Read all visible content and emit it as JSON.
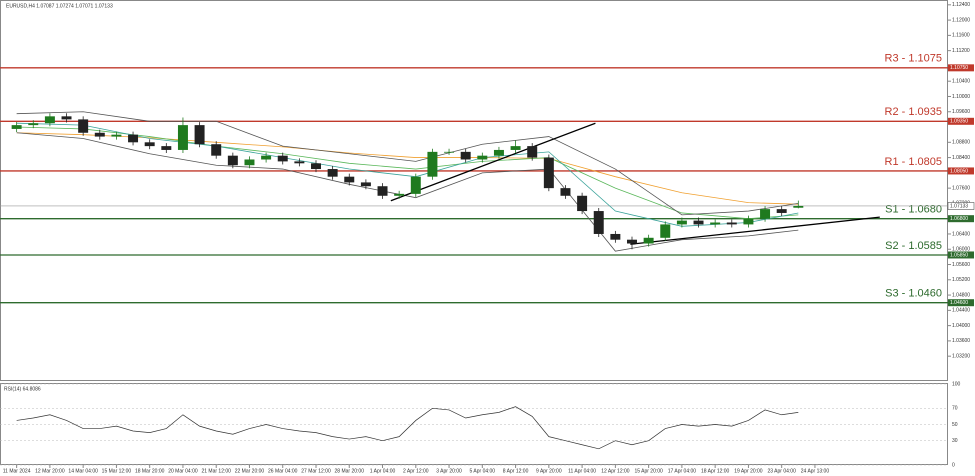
{
  "chart_data": [
    {
      "type": "candlestick",
      "title": "EURUSD,H4 1.07087 1.07274 1.07071 1.07133",
      "x": [
        0,
        1,
        2,
        3,
        4,
        5,
        6,
        7,
        8,
        9,
        10,
        11,
        12,
        13,
        14,
        15,
        16,
        17,
        18,
        19,
        20,
        21,
        22,
        23,
        24,
        25,
        26,
        27,
        28,
        29,
        30,
        31,
        32,
        33,
        34,
        35,
        36,
        37,
        38,
        39,
        40,
        41,
        42,
        43,
        44,
        45,
        46,
        47
      ],
      "open": [
        1.0915,
        1.0925,
        1.093,
        1.0948,
        1.094,
        1.0905,
        1.0895,
        1.09,
        1.088,
        1.087,
        1.086,
        1.0925,
        1.0875,
        1.0845,
        1.082,
        1.0835,
        1.0845,
        1.083,
        1.0825,
        1.081,
        1.079,
        1.0775,
        1.0765,
        1.074,
        1.0745,
        1.079,
        1.0855,
        1.0855,
        1.0835,
        1.0845,
        1.086,
        1.087,
        1.084,
        1.076,
        1.074,
        1.07,
        1.064,
        1.0625,
        1.0615,
        1.063,
        1.0665,
        1.0675,
        1.0665,
        1.067,
        1.0665,
        1.068,
        1.0705,
        1.07087
      ],
      "high": [
        1.0933,
        1.0938,
        1.0956,
        1.0956,
        1.0948,
        1.0913,
        1.0908,
        1.0908,
        1.0888,
        1.0878,
        1.0945,
        1.0933,
        1.0883,
        1.0853,
        1.0843,
        1.0853,
        1.0853,
        1.0838,
        1.0833,
        1.0818,
        1.0798,
        1.0783,
        1.0773,
        1.0753,
        1.0798,
        1.0863,
        1.0863,
        1.0863,
        1.0853,
        1.0868,
        1.0885,
        1.0878,
        1.0848,
        1.0768,
        1.0748,
        1.0708,
        1.0648,
        1.0633,
        1.0638,
        1.0673,
        1.0683,
        1.0683,
        1.0678,
        1.0678,
        1.0688,
        1.0713,
        1.0713,
        1.07274
      ],
      "low": [
        1.0907,
        1.0917,
        1.0922,
        1.0932,
        1.0897,
        1.0887,
        1.0887,
        1.0872,
        1.0862,
        1.0852,
        1.0852,
        1.0867,
        1.0837,
        1.0812,
        1.0812,
        1.0827,
        1.0822,
        1.0817,
        1.0802,
        1.0782,
        1.0767,
        1.0757,
        1.0732,
        1.0732,
        1.0737,
        1.0782,
        1.0847,
        1.0827,
        1.0827,
        1.0837,
        1.0852,
        1.0832,
        1.0752,
        1.0732,
        1.0692,
        1.0632,
        1.0617,
        1.06,
        1.0607,
        1.0622,
        1.0657,
        1.0657,
        1.0657,
        1.0657,
        1.0657,
        1.0672,
        1.0687,
        1.07071
      ],
      "close": [
        1.0925,
        1.093,
        1.0948,
        1.094,
        1.0905,
        1.0895,
        1.09,
        1.088,
        1.087,
        1.086,
        1.0925,
        1.0875,
        1.0845,
        1.082,
        1.0835,
        1.0845,
        1.083,
        1.0825,
        1.081,
        1.079,
        1.0775,
        1.0765,
        1.074,
        1.0745,
        1.079,
        1.0855,
        1.0855,
        1.0835,
        1.0845,
        1.086,
        1.087,
        1.084,
        1.076,
        1.074,
        1.07,
        1.064,
        1.0625,
        1.0615,
        1.063,
        1.0665,
        1.0675,
        1.0665,
        1.067,
        1.0665,
        1.068,
        1.0705,
        1.0695,
        1.07133
      ],
      "up_color": "#1f7a1f",
      "down_color": "#222222",
      "lines": [
        {
          "color": "#f0a030",
          "x": [
            0,
            4,
            8,
            12,
            16,
            20,
            24,
            28,
            32,
            36,
            40,
            44,
            47
          ],
          "values": [
            1.0905,
            1.09,
            1.0892,
            1.088,
            1.0868,
            1.0852,
            1.084,
            1.084,
            1.0838,
            1.079,
            1.0748,
            1.0722,
            1.0718
          ]
        },
        {
          "color": "#5cb85c",
          "x": [
            0,
            4,
            8,
            12,
            16,
            20,
            24,
            28,
            32,
            36,
            40,
            44,
            47
          ],
          "values": [
            1.092,
            1.0915,
            1.0895,
            1.087,
            1.085,
            1.0825,
            1.081,
            1.083,
            1.084,
            1.076,
            1.0695,
            1.068,
            1.069
          ]
        },
        {
          "color": "#3aa39a",
          "x": [
            0,
            4,
            8,
            12,
            16,
            20,
            24,
            28,
            32,
            36,
            40,
            44,
            47
          ],
          "values": [
            1.093,
            1.0925,
            1.089,
            1.087,
            1.084,
            1.081,
            1.079,
            1.084,
            1.0855,
            1.07,
            1.066,
            1.067,
            1.0695
          ]
        },
        {
          "color": "#555555",
          "x": [
            0,
            4,
            8,
            12,
            16,
            20,
            24,
            28,
            32,
            36,
            40,
            44,
            47
          ],
          "values": [
            1.0955,
            1.096,
            1.0935,
            1.0935,
            1.087,
            1.085,
            1.083,
            1.0875,
            1.0895,
            1.081,
            1.069,
            1.07,
            1.072
          ]
        },
        {
          "color": "#555555",
          "x": [
            0,
            4,
            8,
            12,
            16,
            20,
            24,
            28,
            32,
            36,
            40,
            44,
            47
          ],
          "values": [
            1.0905,
            1.089,
            1.085,
            1.082,
            1.081,
            1.077,
            1.0735,
            1.08,
            1.081,
            1.0595,
            1.0625,
            1.0635,
            1.065
          ]
        },
        {
          "color": "#000000",
          "x": [
            22.5,
            34.8
          ],
          "values": [
            1.0727,
            1.093
          ]
        },
        {
          "color": "#000000",
          "x": [
            36.9,
            51.9
          ],
          "values": [
            1.0613,
            1.0684
          ]
        }
      ],
      "levels": [
        {
          "name": "R3 - 1.1075",
          "value": 1.1075,
          "tag": "1.10750",
          "color": "#c0392b"
        },
        {
          "name": "R2 - 1.0935",
          "value": 1.0935,
          "tag": "1.09350",
          "color": "#c0392b"
        },
        {
          "name": "R1 - 1.0805",
          "value": 1.0805,
          "tag": "1.08050",
          "color": "#c0392b"
        },
        {
          "name": "S1 - 1.0680",
          "value": 1.068,
          "tag": "1.06800",
          "color": "#2e6b2e"
        },
        {
          "name": "S2 - 1.0585",
          "value": 1.0585,
          "tag": "1.05850",
          "color": "#2e6b2e"
        },
        {
          "name": "S3 - 1.0460",
          "value": 1.046,
          "tag": "1.04600",
          "color": "#2e6b2e"
        }
      ],
      "current_price": {
        "value": 1.07133,
        "label": "1.07133"
      },
      "xlim": [
        -1,
        56
      ],
      "ylim": [
        1.0255,
        1.125
      ],
      "yticks": [
        {
          "value": 1.032,
          "label": "1.03200"
        },
        {
          "value": 1.036,
          "label": "1.03600"
        },
        {
          "value": 1.04,
          "label": "1.04000"
        },
        {
          "value": 1.044,
          "label": "1.04400"
        },
        {
          "value": 1.048,
          "label": "1.04800"
        },
        {
          "value": 1.052,
          "label": "1.05200"
        },
        {
          "value": 1.056,
          "label": "1.05600"
        },
        {
          "value": 1.06,
          "label": "1.06000"
        },
        {
          "value": 1.064,
          "label": "1.06400"
        },
        {
          "value": 1.072,
          "label": "1.07200"
        },
        {
          "value": 1.076,
          "label": "1.07600"
        },
        {
          "value": 1.084,
          "label": "1.08400"
        },
        {
          "value": 1.088,
          "label": "1.08800"
        },
        {
          "value": 1.096,
          "label": "1.09600"
        },
        {
          "value": 1.1,
          "label": "1.10000"
        },
        {
          "value": 1.104,
          "label": "1.10400"
        },
        {
          "value": 1.112,
          "label": "1.11200"
        },
        {
          "value": 1.116,
          "label": "1.11600"
        },
        {
          "value": 1.12,
          "label": "1.12000"
        },
        {
          "value": 1.124,
          "label": "1.12400"
        }
      ]
    },
    {
      "type": "line",
      "title": "RSI(14) 64.8086",
      "color": "#333333",
      "x": [
        0,
        1,
        2,
        3,
        4,
        5,
        6,
        7,
        8,
        9,
        10,
        11,
        12,
        13,
        14,
        15,
        16,
        17,
        18,
        19,
        20,
        21,
        22,
        23,
        24,
        25,
        26,
        27,
        28,
        29,
        30,
        31,
        32,
        33,
        34,
        35,
        36,
        37,
        38,
        39,
        40,
        41,
        42,
        43,
        44,
        45,
        46,
        47
      ],
      "values": [
        55,
        58,
        62,
        55,
        45,
        45,
        48,
        42,
        40,
        45,
        62,
        48,
        42,
        38,
        45,
        50,
        45,
        42,
        40,
        35,
        32,
        35,
        30,
        35,
        55,
        70,
        68,
        58,
        62,
        65,
        72,
        60,
        35,
        30,
        25,
        20,
        30,
        25,
        30,
        45,
        50,
        48,
        50,
        48,
        55,
        68,
        62,
        65
      ],
      "xlim": [
        -1,
        56
      ],
      "ylim": [
        0,
        100
      ],
      "yticks": [
        0,
        30,
        50,
        70,
        100
      ],
      "xticks": [
        {
          "value": 0,
          "label": "11 Mar 2024"
        },
        {
          "value": 2,
          "label": "12 Mar 20:00"
        },
        {
          "value": 4,
          "label": "14 Mar 04:00"
        },
        {
          "value": 6,
          "label": "15 Mar 12:00"
        },
        {
          "value": 8,
          "label": "18 Mar 20:00"
        },
        {
          "value": 10,
          "label": "20 Mar 04:00"
        },
        {
          "value": 12,
          "label": "21 Mar 12:00"
        },
        {
          "value": 14,
          "label": "22 Mar 20:00"
        },
        {
          "value": 16,
          "label": "26 Mar 04:00"
        },
        {
          "value": 18,
          "label": "27 Mar 12:00"
        },
        {
          "value": 20,
          "label": "28 Mar 20:00"
        },
        {
          "value": 22,
          "label": "1 Apr 04:00"
        },
        {
          "value": 24,
          "label": "2 Apr 12:00"
        },
        {
          "value": 26,
          "label": "3 Apr 20:00"
        },
        {
          "value": 28,
          "label": "5 Apr 04:00"
        },
        {
          "value": 30,
          "label": "8 Apr 12:00"
        },
        {
          "value": 32,
          "label": "9 Apr 20:00"
        },
        {
          "value": 34,
          "label": "11 Apr 04:00"
        },
        {
          "value": 36,
          "label": "12 Apr 12:00"
        },
        {
          "value": 38,
          "label": "15 Apr 20:00"
        },
        {
          "value": 40,
          "label": "17 Apr 04:00"
        },
        {
          "value": 42,
          "label": "18 Apr 12:00"
        },
        {
          "value": 44,
          "label": "19 Apr 20:00"
        },
        {
          "value": 46,
          "label": "23 Apr 04:00"
        },
        {
          "value": 48,
          "label": "24 Apr 13:00"
        }
      ]
    }
  ]
}
